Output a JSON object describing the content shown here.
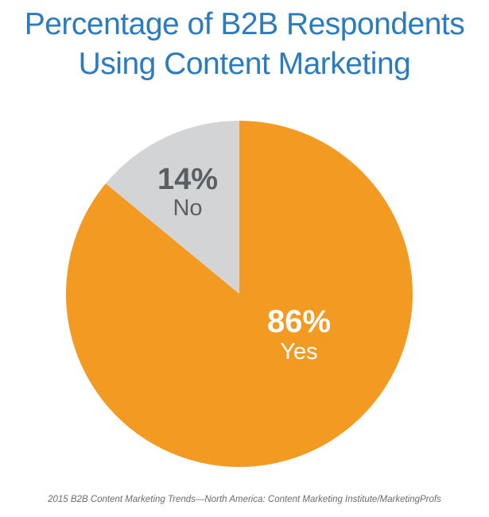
{
  "title_lines": [
    "Percentage of B2B Respondents",
    "Using Content Marketing"
  ],
  "source": "2015 B2B Content Marketing Trends—North America: Content Marketing Institute/MarketingProfs",
  "chart_data": {
    "type": "pie",
    "title": "Percentage of B2B Respondents Using Content Marketing",
    "slices": [
      {
        "label": "Yes",
        "value": 86,
        "value_label": "86%",
        "color": "#f39a22",
        "text_color": "#ffffff"
      },
      {
        "label": "No",
        "value": 14,
        "value_label": "14%",
        "color": "#d3d4d6",
        "text_color": "#5c5f62"
      }
    ]
  }
}
